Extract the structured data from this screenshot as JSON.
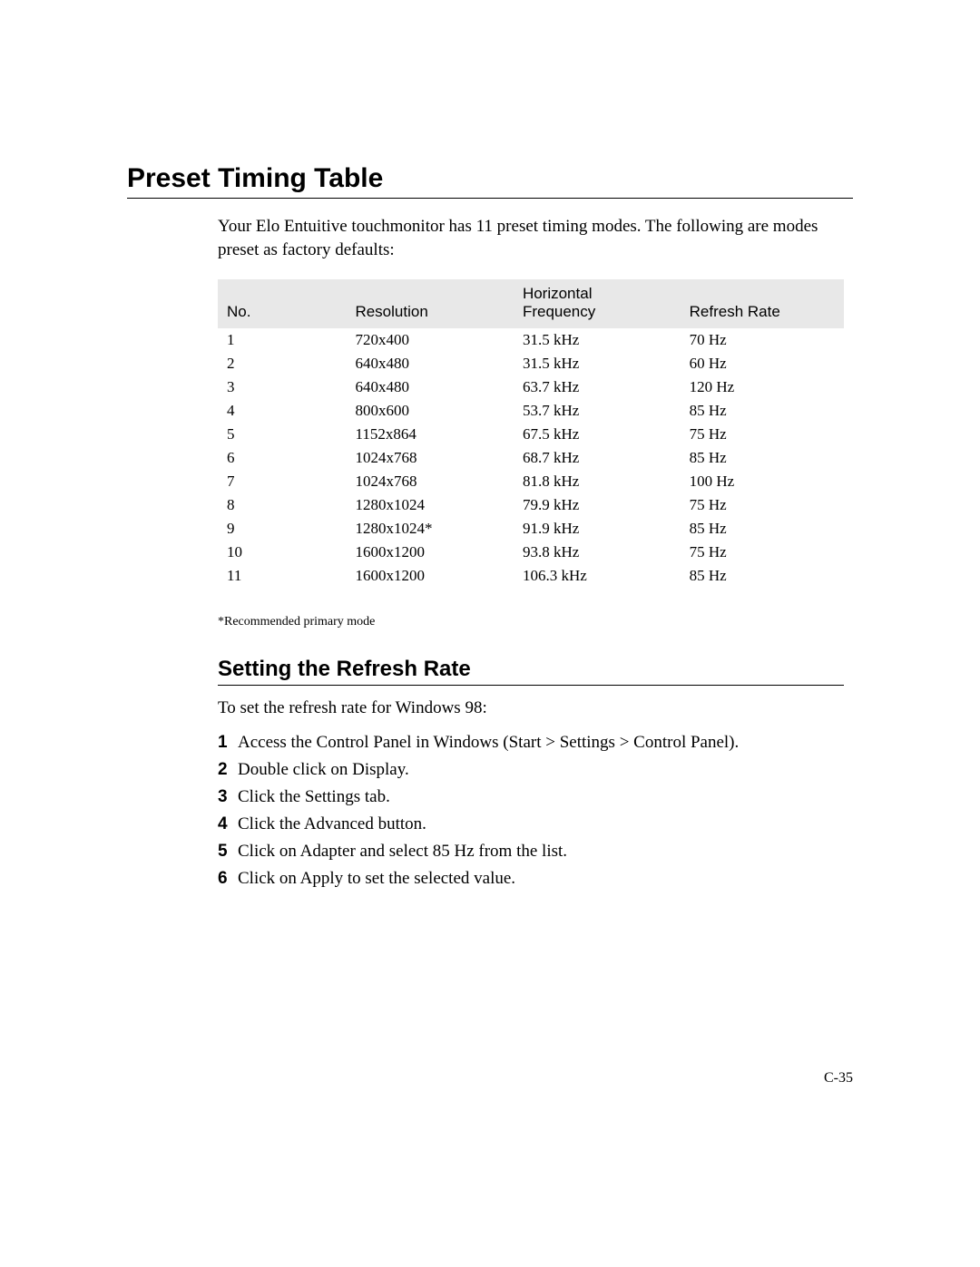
{
  "title": "Preset Timing Table",
  "intro": "Your Elo Entuitive touchmonitor has 11 preset timing modes. The following are modes preset as factory defaults:",
  "table": {
    "headers": {
      "no": "No.",
      "resolution": "Resolution",
      "frequency_line1": "Horizontal",
      "frequency_line2": "Frequency",
      "refresh": "Refresh Rate"
    },
    "rows": [
      {
        "no": "1",
        "res": "720x400",
        "freq": "31.5 kHz",
        "rate": "70 Hz"
      },
      {
        "no": "2",
        "res": "640x480",
        "freq": "31.5 kHz",
        "rate": "60 Hz"
      },
      {
        "no": "3",
        "res": "640x480",
        "freq": "63.7 kHz",
        "rate": "120 Hz"
      },
      {
        "no": "4",
        "res": "800x600",
        "freq": "53.7 kHz",
        "rate": "85 Hz"
      },
      {
        "no": "5",
        "res": "1152x864",
        "freq": "67.5 kHz",
        "rate": "75 Hz"
      },
      {
        "no": "6",
        "res": "1024x768",
        "freq": "68.7 kHz",
        "rate": "85 Hz"
      },
      {
        "no": "7",
        "res": "1024x768",
        "freq": "81.8 kHz",
        "rate": "100 Hz"
      },
      {
        "no": "8",
        "res": "1280x1024",
        "freq": "79.9 kHz",
        "rate": "75 Hz"
      },
      {
        "no": "9",
        "res": "1280x1024*",
        "freq": "91.9 kHz",
        "rate": "85 Hz"
      },
      {
        "no": "10",
        "res": "1600x1200",
        "freq": "93.8 kHz",
        "rate": "75 Hz"
      },
      {
        "no": "11",
        "res": "1600x1200",
        "freq": "106.3 kHz",
        "rate": "85 Hz"
      }
    ]
  },
  "footnote": "*Recommended primary mode",
  "subsection_title": "Setting the Refresh Rate",
  "sub_intro": "To set the refresh rate for Windows 98:",
  "steps": [
    "Access the Control Panel in Windows (Start > Settings > Control Panel).",
    "Double click on Display.",
    "Click the Settings tab.",
    "Click the Advanced button.",
    "Click on Adapter and select 85 Hz from the list.",
    "Click on Apply to set the selected value."
  ],
  "page_number": "C-35"
}
